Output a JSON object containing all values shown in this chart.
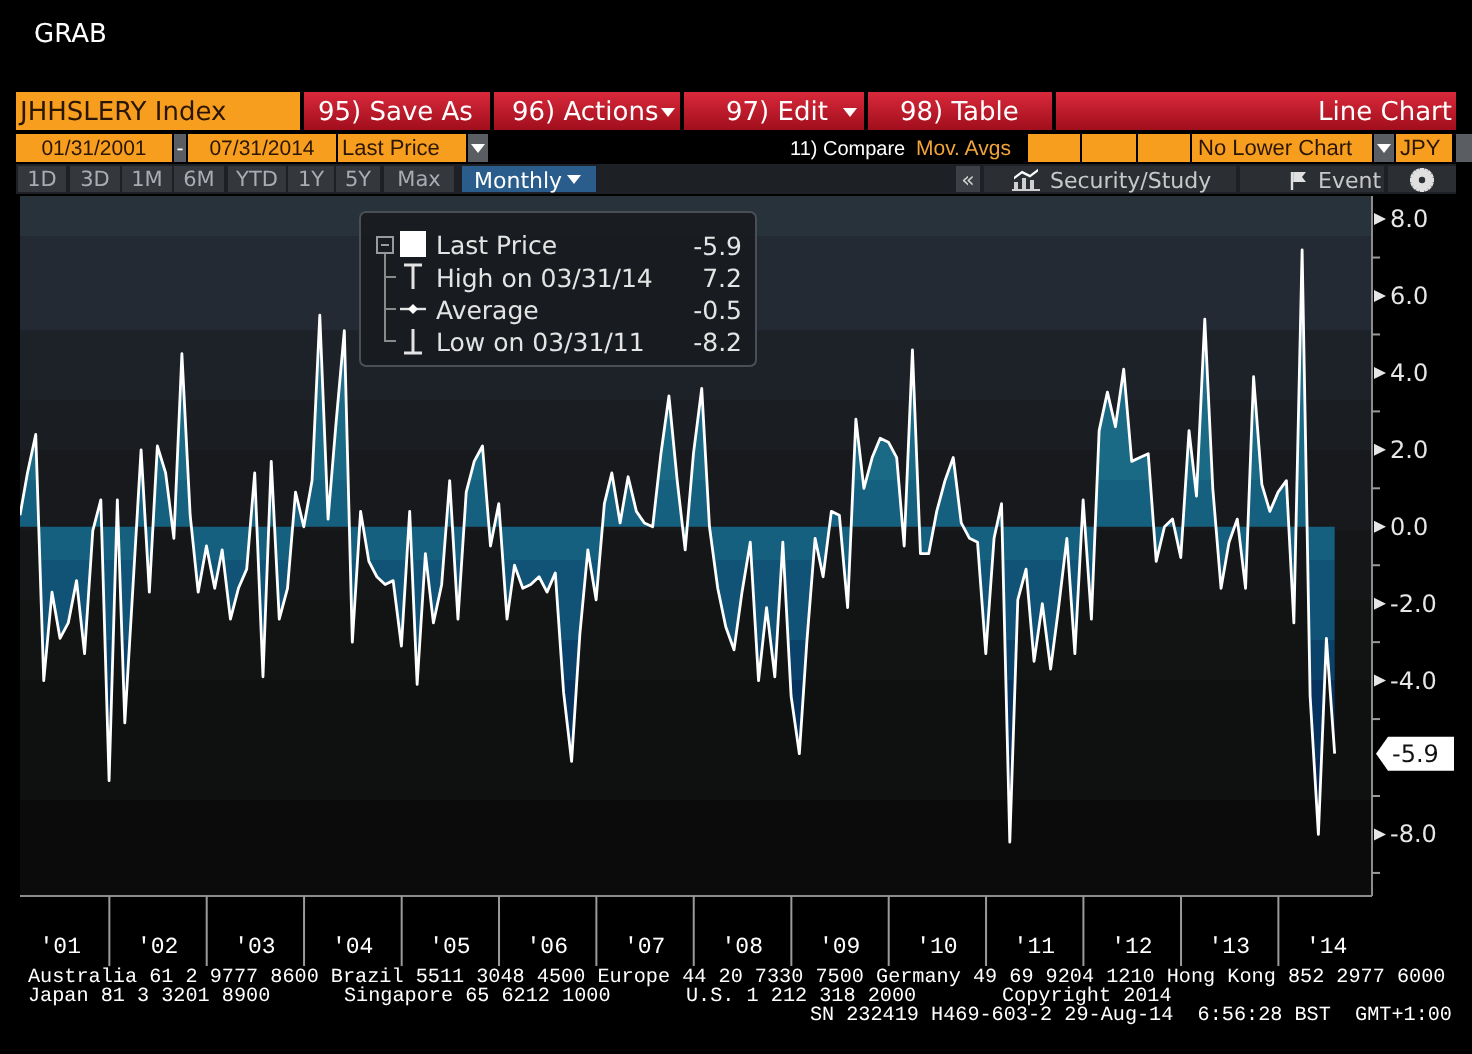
{
  "chart_data": {
    "type": "area",
    "title": "JHHSLERY Index",
    "x": [
      "2001-01-31",
      "2001-02-28",
      "2001-03-31",
      "2001-04-30",
      "2001-05-31",
      "2001-06-30",
      "2001-07-31",
      "2001-08-31",
      "2001-09-30",
      "2001-10-31",
      "2001-11-30",
      "2001-12-31",
      "2002-01-31",
      "2002-02-28",
      "2002-03-31",
      "2002-04-30",
      "2002-05-31",
      "2002-06-30",
      "2002-07-31",
      "2002-08-31",
      "2002-09-30",
      "2002-10-31",
      "2002-11-30",
      "2002-12-31",
      "2003-01-31",
      "2003-02-28",
      "2003-03-31",
      "2003-04-30",
      "2003-05-31",
      "2003-06-30",
      "2003-07-31",
      "2003-08-31",
      "2003-09-30",
      "2003-10-31",
      "2003-11-30",
      "2003-12-31",
      "2004-01-31",
      "2004-02-29",
      "2004-03-31",
      "2004-04-30",
      "2004-05-31",
      "2004-06-30",
      "2004-07-31",
      "2004-08-31",
      "2004-09-30",
      "2004-10-31",
      "2004-11-30",
      "2004-12-31",
      "2005-01-31",
      "2005-02-28",
      "2005-03-31",
      "2005-04-30",
      "2005-05-31",
      "2005-06-30",
      "2005-07-31",
      "2005-08-31",
      "2005-09-30",
      "2005-10-31",
      "2005-11-30",
      "2005-12-31",
      "2006-01-31",
      "2006-02-28",
      "2006-03-31",
      "2006-04-30",
      "2006-05-31",
      "2006-06-30",
      "2006-07-31",
      "2006-08-31",
      "2006-09-30",
      "2006-10-31",
      "2006-11-30",
      "2006-12-31",
      "2007-01-31",
      "2007-02-28",
      "2007-03-31",
      "2007-04-30",
      "2007-05-31",
      "2007-06-30",
      "2007-07-31",
      "2007-08-31",
      "2007-09-30",
      "2007-10-31",
      "2007-11-30",
      "2007-12-31",
      "2008-01-31",
      "2008-02-29",
      "2008-03-31",
      "2008-04-30",
      "2008-05-31",
      "2008-06-30",
      "2008-07-31",
      "2008-08-31",
      "2008-09-30",
      "2008-10-31",
      "2008-11-30",
      "2008-12-31",
      "2009-01-31",
      "2009-02-28",
      "2009-03-31",
      "2009-04-30",
      "2009-05-31",
      "2009-06-30",
      "2009-07-31",
      "2009-08-31",
      "2009-09-30",
      "2009-10-31",
      "2009-11-30",
      "2009-12-31",
      "2010-01-31",
      "2010-02-28",
      "2010-03-31",
      "2010-04-30",
      "2010-05-31",
      "2010-06-30",
      "2010-07-31",
      "2010-08-31",
      "2010-09-30",
      "2010-10-31",
      "2010-11-30",
      "2010-12-31",
      "2011-01-31",
      "2011-02-28",
      "2011-03-31",
      "2011-04-30",
      "2011-05-31",
      "2011-06-30",
      "2011-07-31",
      "2011-08-31",
      "2011-09-30",
      "2011-10-31",
      "2011-11-30",
      "2011-12-31",
      "2012-01-31",
      "2012-02-29",
      "2012-03-31",
      "2012-04-30",
      "2012-05-31",
      "2012-06-30",
      "2012-07-31",
      "2012-08-31",
      "2012-09-30",
      "2012-10-31",
      "2012-11-30",
      "2012-12-31",
      "2013-01-31",
      "2013-02-28",
      "2013-03-31",
      "2013-04-30",
      "2013-05-31",
      "2013-06-30",
      "2013-07-31",
      "2013-08-31",
      "2013-09-30",
      "2013-10-31",
      "2013-11-30",
      "2013-12-31",
      "2014-01-31",
      "2014-02-28",
      "2014-03-31",
      "2014-04-30",
      "2014-05-31",
      "2014-06-30",
      "2014-07-31"
    ],
    "series": [
      {
        "name": "Last Price",
        "color": "#ffffff",
        "values": [
          0.3,
          1.4,
          2.4,
          -4.0,
          -1.7,
          -2.9,
          -2.5,
          -1.4,
          -3.3,
          -0.1,
          0.7,
          -6.6,
          0.7,
          -5.1,
          -1.5,
          2.0,
          -1.7,
          2.1,
          1.4,
          -0.3,
          4.5,
          0.3,
          -1.7,
          -0.5,
          -1.6,
          -0.6,
          -2.4,
          -1.6,
          -1.1,
          1.4,
          -3.9,
          1.7,
          -2.4,
          -1.6,
          0.9,
          0.0,
          1.2,
          5.5,
          0.2,
          2.7,
          5.1,
          -3.0,
          0.4,
          -0.9,
          -1.3,
          -1.5,
          -1.4,
          -3.1,
          0.4,
          -4.1,
          -0.7,
          -2.5,
          -1.5,
          1.2,
          -2.4,
          0.9,
          1.7,
          2.1,
          -0.5,
          0.6,
          -2.4,
          -1.0,
          -1.6,
          -1.5,
          -1.3,
          -1.7,
          -1.2,
          -4.3,
          -6.1,
          -2.8,
          -0.6,
          -1.9,
          0.6,
          1.4,
          0.1,
          1.3,
          0.4,
          0.1,
          0.0,
          1.9,
          3.4,
          1.2,
          -0.6,
          1.9,
          3.6,
          0.0,
          -1.6,
          -2.6,
          -3.2,
          -1.7,
          -0.4,
          -4.0,
          -2.1,
          -3.9,
          -0.4,
          -4.4,
          -5.9,
          -3.0,
          -0.3,
          -1.3,
          0.4,
          0.3,
          -2.1,
          2.8,
          1.0,
          1.8,
          2.3,
          2.2,
          1.8,
          -0.5,
          4.6,
          -0.7,
          -0.7,
          0.4,
          1.2,
          1.8,
          0.1,
          -0.3,
          -0.4,
          -3.3,
          -0.3,
          0.6,
          -8.2,
          -1.9,
          -1.1,
          -3.5,
          -2.0,
          -3.7,
          -2.1,
          -0.3,
          -3.3,
          0.7,
          -2.4,
          2.5,
          3.5,
          2.6,
          4.1,
          1.7,
          1.8,
          1.9,
          -0.9,
          0.0,
          0.2,
          -0.8,
          2.5,
          0.8,
          5.4,
          1.0,
          -1.6,
          -0.4,
          0.2,
          -1.6,
          3.9,
          1.1,
          0.4,
          0.9,
          1.2,
          -2.5,
          7.2,
          -4.4,
          -8.0,
          -2.9,
          -5.9
        ]
      }
    ],
    "xlim": [
      "2001-01-31",
      "2014-12-18"
    ],
    "xticks": [
      {
        "value": "2001-07-01",
        "label": "'01"
      },
      {
        "value": "2002-01-01",
        "label": null
      },
      {
        "value": "2002-07-01",
        "label": "'02"
      },
      {
        "value": "2003-01-01",
        "label": null
      },
      {
        "value": "2003-07-01",
        "label": "'03"
      },
      {
        "value": "2004-01-01",
        "label": null
      },
      {
        "value": "2004-07-01",
        "label": "'04"
      },
      {
        "value": "2005-01-01",
        "label": null
      },
      {
        "value": "2005-07-01",
        "label": "'05"
      },
      {
        "value": "2006-01-01",
        "label": null
      },
      {
        "value": "2006-07-01",
        "label": "'06"
      },
      {
        "value": "2007-01-01",
        "label": null
      },
      {
        "value": "2007-07-01",
        "label": "'07"
      },
      {
        "value": "2008-01-01",
        "label": null
      },
      {
        "value": "2008-07-01",
        "label": "'08"
      },
      {
        "value": "2009-01-01",
        "label": null
      },
      {
        "value": "2009-07-01",
        "label": "'09"
      },
      {
        "value": "2010-01-01",
        "label": null
      },
      {
        "value": "2010-07-01",
        "label": "'10"
      },
      {
        "value": "2011-01-01",
        "label": null
      },
      {
        "value": "2011-07-01",
        "label": "'11"
      },
      {
        "value": "2012-01-01",
        "label": null
      },
      {
        "value": "2012-07-01",
        "label": "'12"
      },
      {
        "value": "2013-01-01",
        "label": null
      },
      {
        "value": "2013-07-01",
        "label": "'13"
      },
      {
        "value": "2014-01-01",
        "label": null
      },
      {
        "value": "2014-07-01",
        "label": "'14"
      }
    ],
    "ylim": [
      -9.6,
      8.6
    ],
    "yticks": [
      {
        "value": 8,
        "label": "8.0"
      },
      {
        "value": 7,
        "label": null
      },
      {
        "value": 6,
        "label": "6.0"
      },
      {
        "value": 5,
        "label": null
      },
      {
        "value": 4,
        "label": "4.0"
      },
      {
        "value": 3,
        "label": null
      },
      {
        "value": 2,
        "label": "2.0"
      },
      {
        "value": 1,
        "label": null
      },
      {
        "value": 0,
        "label": "0.0"
      },
      {
        "value": -1,
        "label": null
      },
      {
        "value": -2,
        "label": "-2.0"
      },
      {
        "value": -3,
        "label": null
      },
      {
        "value": -4,
        "label": "-4.0"
      },
      {
        "value": -5,
        "label": null
      },
      {
        "value": -7,
        "label": null
      },
      {
        "value": -8,
        "label": "-8.0"
      },
      {
        "value": -9,
        "label": null
      }
    ],
    "legend": "top",
    "annotations": [
      "GRAB",
      "95) Save As",
      "96) Actions",
      "97) Edit",
      "98) Table",
      "Line Chart",
      "01/31/2001",
      "-",
      "07/31/2014",
      "Last Price",
      "11) Compare",
      "Mov. Avgs",
      "No Lower Chart",
      "JPY",
      "1D",
      "3D",
      "1M",
      "6M",
      "YTD",
      "1Y",
      "5Y",
      "Max",
      "Monthly",
      "«",
      "Security/Study",
      "Event",
      "-5.9",
      "High on 03/31/14",
      "7.2",
      "Average",
      "-0.5",
      "Low on 03/31/11",
      "-8.2",
      "Australia 61 2 9777 8600 Brazil 5511 3048 4500 Europe 44 20 7330 7500 Germany 49 69 9204 1210 Hong Kong 852 2977 6000",
      "Japan 81 3 3201 8900",
      "Singapore 65 6212 1000",
      "U.S. 1 212 318 2000",
      "Copyright 2014",
      "SN 232419 H469-603-2 29-Aug-14  6:56:28 BST  GMT+1:00",
      {
        "text": "-5.9",
        "y": -5.9
      }
    ]
  }
}
